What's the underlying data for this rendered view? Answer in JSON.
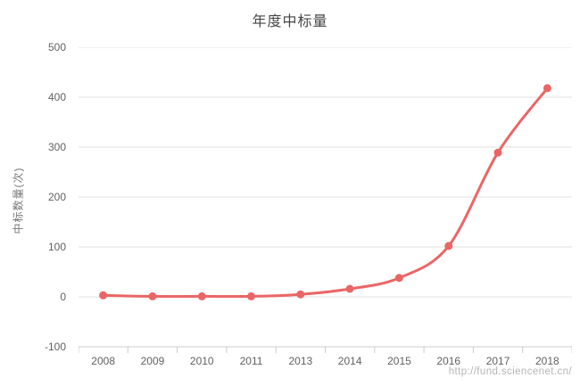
{
  "page": {
    "background": "#ffffff"
  },
  "chart_data": {
    "type": "line",
    "title": "年度中标量",
    "ylabel": "中标数量(次)",
    "xlabel": "",
    "categories": [
      "2008",
      "2009",
      "2010",
      "2011",
      "2013",
      "2014",
      "2015",
      "2016",
      "2017",
      "2018"
    ],
    "series": [
      {
        "name": "年度中标量",
        "values": [
          3,
          1,
          1,
          1,
          5,
          16,
          38,
          102,
          289,
          418
        ]
      }
    ],
    "ylim": [
      -100,
      500
    ],
    "yticks": [
      500,
      400,
      300,
      200,
      100,
      0,
      -100
    ],
    "grid": true,
    "smooth": true,
    "legend_position": "none",
    "marker": "circle",
    "watermark": "http://fund.sciencenet.cn/",
    "colors": {
      "line": "#ea6666",
      "marker": "#ea6666",
      "gridline": "#e2e2e2",
      "axis_line": "#cccccc",
      "tick_label": "#616161",
      "title": "#464646",
      "axis_name": "#767676",
      "watermark": "#b5b5b5",
      "background": "#ffffff"
    }
  }
}
